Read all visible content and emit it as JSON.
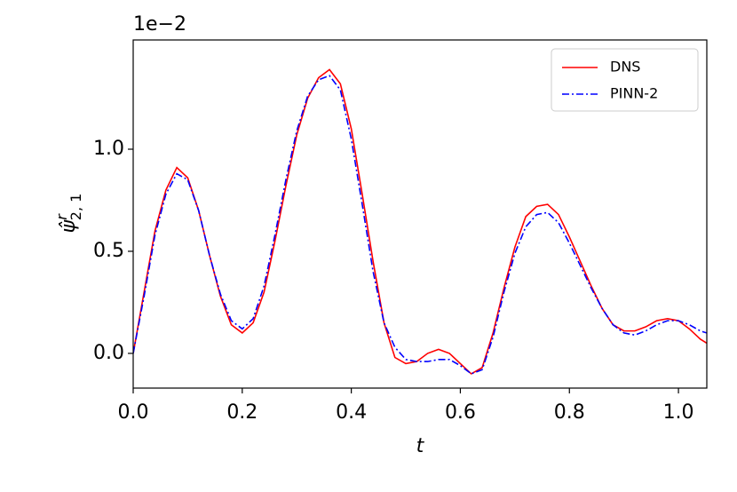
{
  "chart_data": {
    "type": "line",
    "offset_text": "1e−2",
    "xlabel": "t",
    "ylabel": {
      "base": "ψ̂",
      "sup": "r",
      "sub": "2, 1"
    },
    "xlim": [
      0,
      1.052
    ],
    "ylim": [
      -0.17,
      1.535
    ],
    "xticks": [
      {
        "value": 0,
        "label": "0.0"
      },
      {
        "value": 0.2,
        "label": "0.2"
      },
      {
        "value": 0.4,
        "label": "0.4"
      },
      {
        "value": 0.6,
        "label": "0.6"
      },
      {
        "value": 0.8,
        "label": "0.8"
      },
      {
        "value": 1,
        "label": "1.0"
      }
    ],
    "yticks": [
      {
        "value": 0,
        "label": "0.0"
      },
      {
        "value": 0.5,
        "label": "0.5"
      },
      {
        "value": 1,
        "label": "1.0"
      }
    ],
    "legend": "upper right",
    "x": [
      0,
      0.02,
      0.04,
      0.06,
      0.08,
      0.1,
      0.12,
      0.14,
      0.16,
      0.18,
      0.2,
      0.22,
      0.24,
      0.26,
      0.28,
      0.3,
      0.32,
      0.34,
      0.36,
      0.38,
      0.4,
      0.42,
      0.44,
      0.46,
      0.48,
      0.5,
      0.52,
      0.54,
      0.56,
      0.58,
      0.6,
      0.62,
      0.64,
      0.66,
      0.68,
      0.7,
      0.72,
      0.74,
      0.76,
      0.78,
      0.8,
      0.82,
      0.84,
      0.86,
      0.88,
      0.9,
      0.92,
      0.94,
      0.96,
      0.98,
      1.0,
      1.02,
      1.04,
      1.052
    ],
    "series": [
      {
        "name": "DNS",
        "color": "#ff0000",
        "dash": "none",
        "values": [
          0.0,
          0.3,
          0.6,
          0.8,
          0.91,
          0.86,
          0.7,
          0.48,
          0.28,
          0.14,
          0.1,
          0.15,
          0.3,
          0.55,
          0.82,
          1.07,
          1.25,
          1.35,
          1.39,
          1.32,
          1.1,
          0.78,
          0.45,
          0.15,
          -0.02,
          -0.05,
          -0.04,
          0.0,
          0.02,
          0.0,
          -0.05,
          -0.1,
          -0.07,
          0.1,
          0.32,
          0.52,
          0.67,
          0.72,
          0.73,
          0.68,
          0.57,
          0.45,
          0.33,
          0.22,
          0.14,
          0.11,
          0.11,
          0.13,
          0.16,
          0.17,
          0.16,
          0.12,
          0.07,
          0.05
        ]
      },
      {
        "name": "PINN-2",
        "color": "#0000ff",
        "dash": "8 3 2 3",
        "values": [
          0.0,
          0.28,
          0.58,
          0.78,
          0.88,
          0.85,
          0.7,
          0.48,
          0.29,
          0.16,
          0.12,
          0.17,
          0.33,
          0.58,
          0.85,
          1.09,
          1.26,
          1.34,
          1.36,
          1.29,
          1.05,
          0.73,
          0.4,
          0.15,
          0.03,
          -0.03,
          -0.04,
          -0.04,
          -0.03,
          -0.03,
          -0.06,
          -0.1,
          -0.08,
          0.08,
          0.3,
          0.49,
          0.62,
          0.68,
          0.69,
          0.64,
          0.54,
          0.43,
          0.32,
          0.22,
          0.14,
          0.1,
          0.09,
          0.11,
          0.14,
          0.16,
          0.16,
          0.14,
          0.11,
          0.1
        ]
      }
    ]
  }
}
